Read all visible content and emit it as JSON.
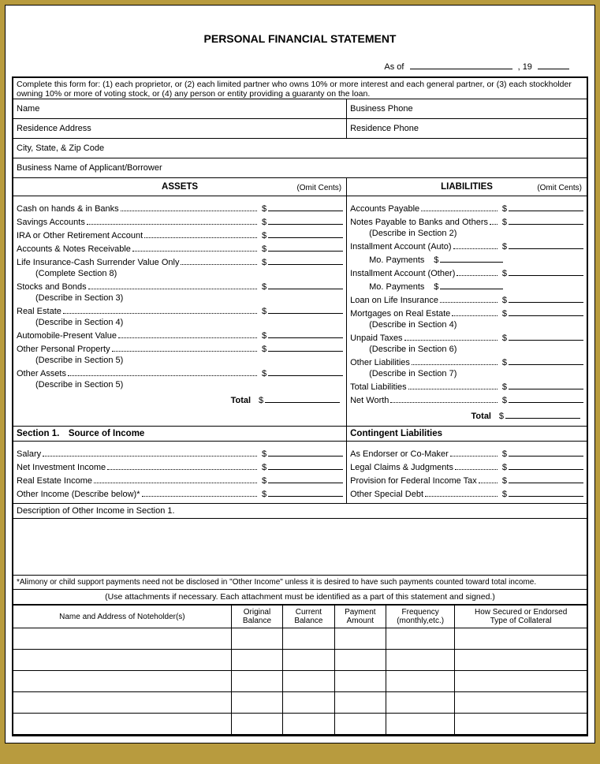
{
  "title": "PERSONAL FINANCIAL STATEMENT",
  "asof": {
    "label": "As of",
    "year_prefix": ", 19"
  },
  "instructions": "Complete this form for: (1) each proprietor, or (2) each limited partner who owns 10% or more interest and each general partner, or (3) each stockholder owning 10% or more of voting stock, or (4) any person or entity providing a guaranty on the loan.",
  "header_fields": {
    "name": "Name",
    "business_phone": "Business Phone",
    "residence_address": "Residence Address",
    "residence_phone": "Residence Phone",
    "city_state_zip": "City, State, & Zip Code",
    "business_name": "Business Name of Applicant/Borrower"
  },
  "omit_cents": "(Omit Cents)",
  "assets": {
    "heading": "ASSETS",
    "items": [
      {
        "label": "Cash on hands & in Banks"
      },
      {
        "label": "Savings Accounts"
      },
      {
        "label": "IRA or Other Retirement Account"
      },
      {
        "label": "Accounts & Notes Receivable"
      },
      {
        "label": "Life Insurance-Cash Surrender Value Only",
        "sub": "(Complete Section 8)"
      },
      {
        "label": "Stocks and Bonds",
        "sub": "(Describe in Section 3)"
      },
      {
        "label": "Real Estate",
        "sub": "(Describe in Section 4)"
      },
      {
        "label": "Automobile-Present Value"
      },
      {
        "label": "Other Personal Property",
        "sub": "(Describe in Section 5)"
      },
      {
        "label": "Other Assets",
        "sub": "(Describe in Section 5)"
      }
    ],
    "total": "Total"
  },
  "liabilities": {
    "heading": "LIABILITIES",
    "items": [
      {
        "label": "Accounts Payable"
      },
      {
        "label": "Notes Payable to Banks and Others",
        "sub": "(Describe in Section 2)"
      },
      {
        "label": "Installment Account (Auto)",
        "pay": "Mo. Payments"
      },
      {
        "label": "Installment Account (Other)",
        "pay": "Mo. Payments"
      },
      {
        "label": "Loan on Life Insurance"
      },
      {
        "label": "Mortgages on Real Estate",
        "sub": "(Describe in Section 4)"
      },
      {
        "label": "Unpaid Taxes",
        "sub": "(Describe in Section 6)"
      },
      {
        "label": "Other Liabilities",
        "sub": "(Describe in Section 7)"
      },
      {
        "label": "Total Liabilities"
      },
      {
        "label": "Net Worth"
      }
    ],
    "total": "Total"
  },
  "section1": {
    "heading": "Section 1. Source of Income",
    "items": [
      {
        "label": "Salary"
      },
      {
        "label": "Net Investment Income"
      },
      {
        "label": "Real Estate Income"
      },
      {
        "label": "Other Income (Describe below)*"
      }
    ]
  },
  "contingent": {
    "heading": "Contingent Liabilities",
    "items": [
      {
        "label": "As Endorser or Co-Maker"
      },
      {
        "label": "Legal Claims & Judgments"
      },
      {
        "label": "Provision for Federal Income Tax"
      },
      {
        "label": "Other Special Debt"
      }
    ]
  },
  "desc_heading": "Description of Other Income in Section 1.",
  "footnote": "*Alimony or child support payments need not be disclosed in \"Other Income\" unless it is desired to have such payments counted toward total income.",
  "attach_note": "(Use attachments if necessary. Each attachment must be identified as a part of this statement and signed.)",
  "section2": {
    "cols": [
      "Name and Address of Noteholder(s)",
      "Original Balance",
      "Current Balance",
      "Payment Amount",
      "Frequency (monthly,etc.)",
      "How Secured or Endorsed Type of Collateral"
    ],
    "row_count": 5
  }
}
